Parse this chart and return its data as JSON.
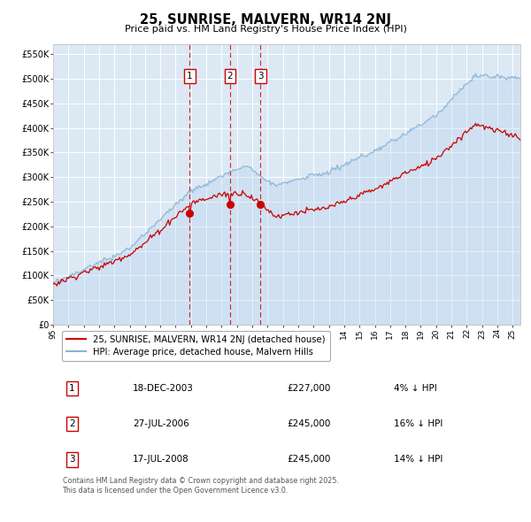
{
  "title": "25, SUNRISE, MALVERN, WR14 2NJ",
  "subtitle": "Price paid vs. HM Land Registry's House Price Index (HPI)",
  "bg_color": "#dce9f5",
  "line1_color": "#cc0000",
  "line2_color": "#8ab4d4",
  "line1_label": "25, SUNRISE, MALVERN, WR14 2NJ (detached house)",
  "line2_label": "HPI: Average price, detached house, Malvern Hills",
  "ytick_vals": [
    0,
    50000,
    100000,
    150000,
    200000,
    250000,
    300000,
    350000,
    400000,
    450000,
    500000,
    550000
  ],
  "ytick_labels": [
    "£0",
    "£50K",
    "£100K",
    "£150K",
    "£200K",
    "£250K",
    "£300K",
    "£350K",
    "£400K",
    "£450K",
    "£500K",
    "£550K"
  ],
  "sale_indices": [
    107,
    138,
    162
  ],
  "sale_prices": [
    227000,
    245000,
    245000
  ],
  "sale_years_float": [
    2003.917,
    2006.542,
    2008.542
  ],
  "sale_labels": [
    "18-DEC-2003",
    "27-JUL-2006",
    "17-JUL-2008"
  ],
  "sale_price_strs": [
    "£227,000",
    "£245,000",
    "£245,000"
  ],
  "sale_pct_strs": [
    "4% ↓ HPI",
    "16% ↓ HPI",
    "14% ↓ HPI"
  ],
  "footnote": "Contains HM Land Registry data © Crown copyright and database right 2025.\nThis data is licensed under the Open Government Licence v3.0.",
  "grid_color": "#ffffff",
  "vline_color": "#cc0000",
  "marker_color": "#cc0000"
}
